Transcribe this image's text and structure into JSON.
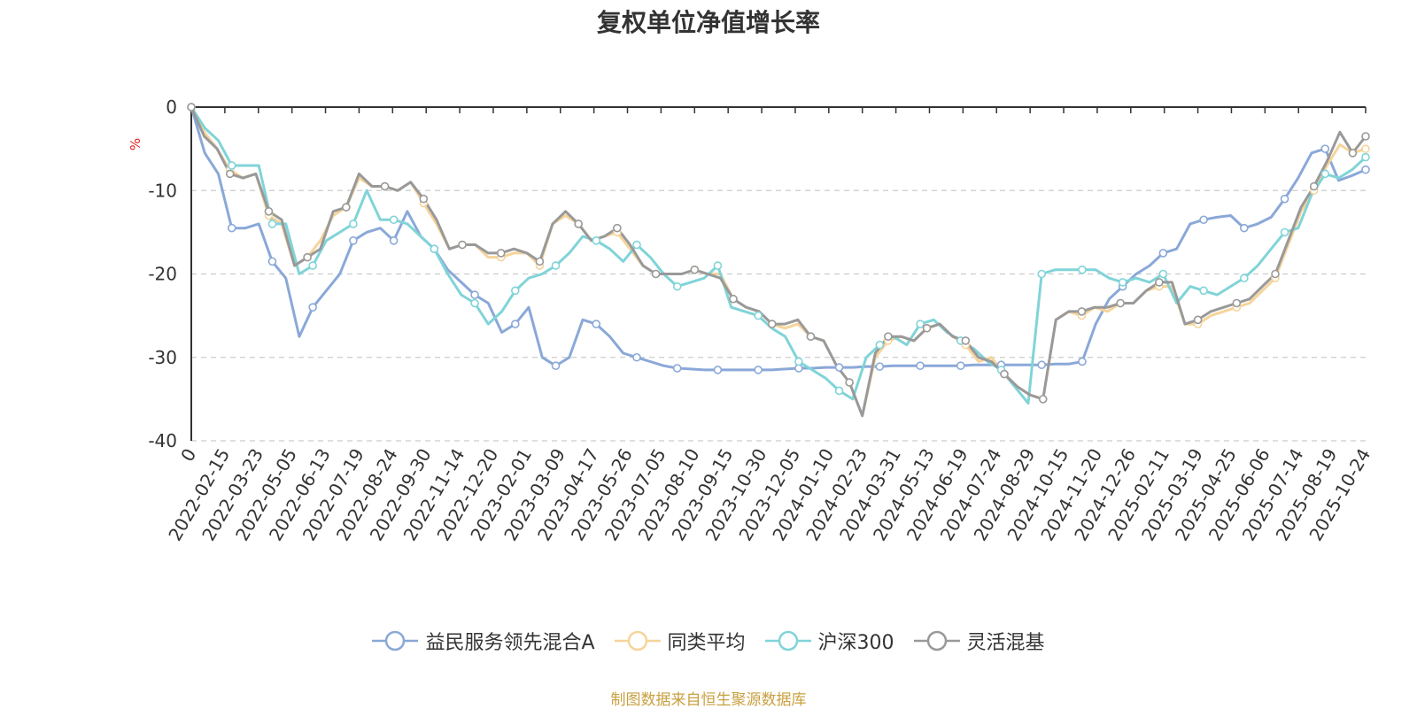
{
  "chart_data": {
    "type": "line",
    "title": "复权单位净值增长率",
    "ylabel": "%",
    "ylim": [
      -40,
      0
    ],
    "yticks": [
      0,
      -10,
      -20,
      -30,
      -40
    ],
    "grid": true,
    "legend_position": "bottom",
    "x_tick_labels": [
      "0",
      "2022-02-15",
      "2022-03-23",
      "2022-05-05",
      "2022-06-13",
      "2022-07-19",
      "2022-08-24",
      "2022-09-30",
      "2022-11-14",
      "2022-12-20",
      "2023-02-01",
      "2023-03-09",
      "2023-04-17",
      "2023-05-26",
      "2023-07-05",
      "2023-08-10",
      "2023-09-15",
      "2023-10-30",
      "2023-12-05",
      "2024-01-10",
      "2024-02-23",
      "2024-03-31",
      "2024-05-13",
      "2024-06-19",
      "2024-07-24",
      "2024-08-29",
      "2024-10-15",
      "2024-11-20",
      "2024-12-26",
      "2025-02-11",
      "2025-03-19",
      "2025-04-25",
      "2025-06-06",
      "2025-07-14",
      "2025-08-19",
      "2025-10-24"
    ],
    "series": [
      {
        "name": "益民服务领先混合A",
        "color": "#8aa8d8",
        "values": [
          0,
          -5.5,
          -8,
          -14.5,
          -14.5,
          -14,
          -18.5,
          -20.5,
          -27.5,
          -24,
          -22,
          -20,
          -16,
          -15,
          -14.5,
          -16,
          -12.5,
          -15.5,
          -17,
          -19.5,
          -21,
          -22.5,
          -23.5,
          -27,
          -26,
          -24,
          -30,
          -31,
          -30,
          -25.5,
          -26,
          -27.5,
          -29.5,
          -30,
          -30.5,
          -31,
          -31.3,
          -31.4,
          -31.5,
          -31.5,
          -31.5,
          -31.5,
          -31.5,
          -31.5,
          -31.4,
          -31.3,
          -31.3,
          -31.2,
          -31.2,
          -31.2,
          -31.1,
          -31.1,
          -31,
          -31,
          -31,
          -31,
          -31,
          -31,
          -30.9,
          -30.9,
          -30.9,
          -30.9,
          -30.9,
          -30.9,
          -30.8,
          -30.8,
          -30.5,
          -26,
          -23,
          -21.5,
          -20,
          -19,
          -17.5,
          -17,
          -14,
          -13.5,
          -13.2,
          -13,
          -14.5,
          -14,
          -13.2,
          -11,
          -8.5,
          -5.5,
          -5,
          -8.8,
          -8.2,
          -7.5
        ]
      },
      {
        "name": "同类平均",
        "color": "#f6d49a",
        "values": [
          0,
          -3,
          -5,
          -7.5,
          -8.5,
          -8,
          -13,
          -14,
          -19,
          -18,
          -16,
          -13,
          -12,
          -8.5,
          -9.5,
          -9.5,
          -10,
          -9,
          -11.5,
          -14,
          -17,
          -16.5,
          -16.5,
          -18,
          -18,
          -17.5,
          -17.5,
          -19,
          -14,
          -13,
          -14,
          -16,
          -15.5,
          -15,
          -17,
          -19,
          -20,
          -20,
          -20,
          -19.5,
          -20,
          -20,
          -23,
          -24,
          -24.5,
          -26,
          -26.5,
          -26,
          -27.5,
          -28,
          -31,
          -33,
          -37,
          -30,
          -28,
          -27.5,
          -28,
          -26.5,
          -26,
          -27.5,
          -28.5,
          -30.5,
          -30,
          -32,
          -33.5,
          -34.5,
          -35,
          -25.5,
          -24.5,
          -25,
          -24,
          -24.5,
          -23.5,
          -23.5,
          -22,
          -21.5,
          -21.5,
          -26,
          -26,
          -25,
          -24.5,
          -24,
          -23.5,
          -22,
          -20.5,
          -16.5,
          -12.5,
          -10,
          -7,
          -4.5,
          -5.5,
          -5
        ]
      },
      {
        "name": "沪深300",
        "color": "#80d4d8",
        "values": [
          0,
          -2.5,
          -4,
          -7,
          -7,
          -7,
          -14,
          -14,
          -20,
          -19,
          -16,
          -15,
          -14,
          -10,
          -13.5,
          -13.5,
          -14,
          -15.5,
          -17,
          -20,
          -22.5,
          -23.5,
          -26,
          -24.5,
          -22,
          -20.5,
          -20,
          -19,
          -17.5,
          -15.5,
          -16,
          -17,
          -18.5,
          -16.5,
          -18,
          -20,
          -21.5,
          -21,
          -20.5,
          -19,
          -24,
          -24.5,
          -25,
          -26.5,
          -27.5,
          -30.5,
          -31.5,
          -32.5,
          -34,
          -35,
          -30,
          -28.5,
          -27.5,
          -28.5,
          -26,
          -25.5,
          -27,
          -28,
          -29,
          -30.5,
          -31.5,
          -33.5,
          -35.5,
          -20,
          -19.5,
          -19.5,
          -19.5,
          -19.5,
          -20.5,
          -21,
          -20.5,
          -21,
          -20,
          -23.5,
          -21.5,
          -22,
          -22.5,
          -21.5,
          -20.5,
          -19,
          -17,
          -15,
          -14.5,
          -10.5,
          -8,
          -8.5,
          -7.5,
          -6
        ]
      },
      {
        "name": "灵活混基",
        "color": "#999999",
        "values": [
          0,
          -3.5,
          -5,
          -8,
          -8.5,
          -8,
          -12.5,
          -13.5,
          -19,
          -18,
          -17,
          -12.5,
          -12,
          -8,
          -9.5,
          -9.5,
          -10,
          -9,
          -11,
          -13.5,
          -17,
          -16.5,
          -16.5,
          -17.5,
          -17.5,
          -17,
          -17.5,
          -18.5,
          -14,
          -12.5,
          -14,
          -16,
          -15.5,
          -14.5,
          -16.5,
          -19,
          -20,
          -20,
          -20,
          -19.5,
          -20,
          -20.5,
          -23,
          -24,
          -24.5,
          -26,
          -26,
          -25.5,
          -27.5,
          -28,
          -31,
          -33,
          -37,
          -29.5,
          -27.5,
          -27.5,
          -28,
          -26.5,
          -26,
          -27.5,
          -28,
          -30,
          -30.5,
          -32,
          -33.5,
          -34.5,
          -35,
          -25.5,
          -24.5,
          -24.5,
          -24,
          -24,
          -23.5,
          -23.5,
          -22,
          -21,
          -21,
          -26,
          -25.5,
          -24.5,
          -24,
          -23.5,
          -23,
          -21.5,
          -20,
          -16,
          -12,
          -9.5,
          -6.5,
          -3,
          -5.5,
          -3.5
        ]
      }
    ]
  },
  "source_note": "制图数据来自恒生聚源数据库"
}
